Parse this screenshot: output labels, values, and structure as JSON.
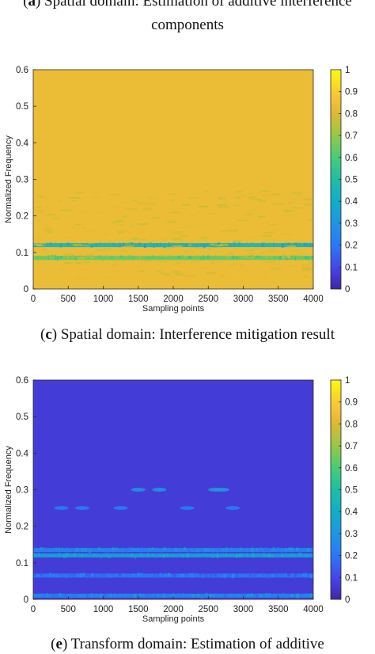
{
  "captions": {
    "a": {
      "letter": "a",
      "text": " Spatial domain: Estimation of additive interference",
      "line2": "components"
    },
    "c": {
      "letter": "c",
      "text": " Spatial domain: Interference mitigation result"
    },
    "e": {
      "letter": "e",
      "text": " Transform domain: Estimation of additive"
    }
  },
  "chart_data": [
    {
      "type": "heatmap",
      "panel": "a",
      "xlabel": "Sampling points",
      "ylabel": "Normalized Frequency",
      "xlim": [
        0,
        4000
      ],
      "ylim": [
        0,
        0.6
      ],
      "xticks": [
        "0",
        "500",
        "1000",
        "1500",
        "2000",
        "2500",
        "3000",
        "3500",
        "4000"
      ],
      "yticks": [
        "0",
        "0.1",
        "0.2",
        "0.3",
        "0.4",
        "0.5",
        "0.6"
      ],
      "clim": [
        0,
        1
      ],
      "colorbar_ticks": [
        "0",
        "0.1",
        "0.2",
        "0.3",
        "0.4",
        "0.5",
        "0.6",
        "0.7",
        "0.8",
        "0.9",
        "1"
      ],
      "colormap": "parula",
      "background_value": 0.83,
      "features": [
        {
          "kind": "band",
          "freq": 0.12,
          "value": 0.43
        },
        {
          "kind": "band",
          "freq": 0.085,
          "value": 0.62
        },
        {
          "kind": "texture",
          "freq_range": [
            0.03,
            0.27
          ],
          "value": 0.79
        }
      ]
    },
    {
      "type": "heatmap",
      "panel": "c",
      "xlabel": "Sampling points",
      "ylabel": "Normalized Frequency",
      "xlim": [
        0,
        4000
      ],
      "ylim": [
        0,
        0.6
      ],
      "xticks": [
        "0",
        "500",
        "1000",
        "1500",
        "2000",
        "2500",
        "3000",
        "3500",
        "4000"
      ],
      "yticks": [
        "0",
        "0.1",
        "0.2",
        "0.3",
        "0.4",
        "0.5",
        "0.6"
      ],
      "clim": [
        0,
        1
      ],
      "colorbar_ticks": [
        "0",
        "0.1",
        "0.2",
        "0.3",
        "0.4",
        "0.5",
        "0.6",
        "0.7",
        "0.8",
        "0.9",
        "1"
      ],
      "colormap": "parula",
      "background_value": 0.07,
      "features": [
        {
          "kind": "band",
          "freq": 0.135,
          "value": 0.25
        },
        {
          "kind": "band",
          "freq": 0.12,
          "value": 0.35
        },
        {
          "kind": "band",
          "freq": 0.065,
          "value": 0.2
        },
        {
          "kind": "band",
          "freq": 0.01,
          "value": 0.25
        },
        {
          "kind": "spots",
          "freq": 0.3,
          "value": 0.3,
          "x": [
            1500,
            1800,
            2600,
            2700
          ]
        },
        {
          "kind": "spots",
          "freq": 0.25,
          "value": 0.22,
          "x": [
            400,
            700,
            1250,
            2200,
            2850
          ]
        }
      ]
    }
  ]
}
